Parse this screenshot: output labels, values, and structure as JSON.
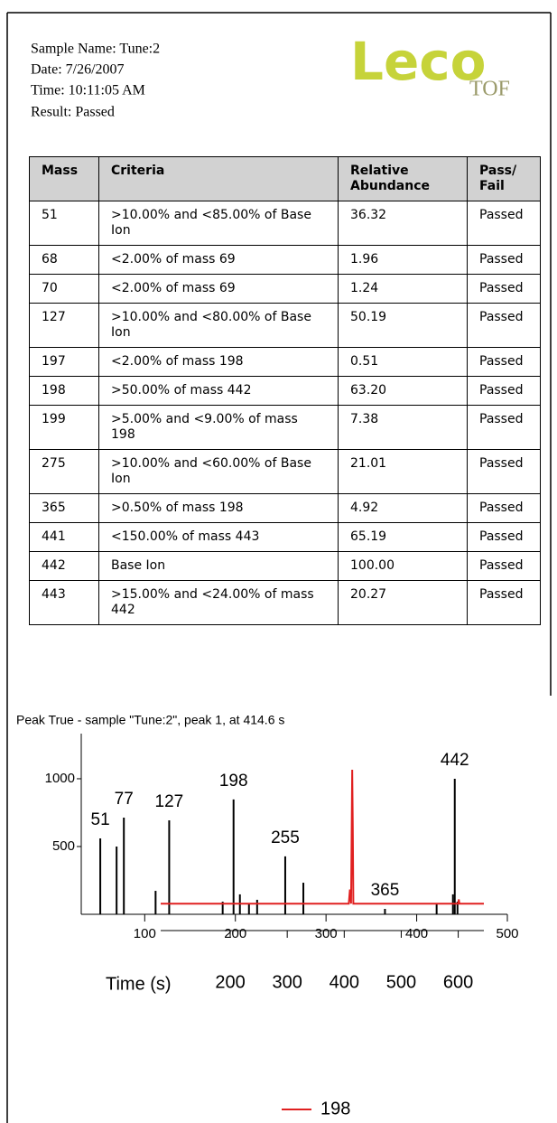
{
  "header": {
    "sample_name": "Sample Name: Tune:2",
    "date": "Date: 7/26/2007",
    "time": "Time: 10:11:05 AM",
    "result": "Result: Passed",
    "logo": "Leco",
    "logo_sub": "TOF"
  },
  "table": {
    "columns": [
      "Mass",
      "Criteria",
      "Relative Abundance",
      "Pass/ Fail"
    ],
    "rows": [
      [
        "51",
        ">10.00% and <85.00% of Base Ion",
        "36.32",
        "Passed"
      ],
      [
        "68",
        "<2.00% of mass 69",
        "1.96",
        "Passed"
      ],
      [
        "70",
        "<2.00% of mass 69",
        "1.24",
        "Passed"
      ],
      [
        "127",
        ">10.00% and <80.00% of Base Ion",
        "50.19",
        "Passed"
      ],
      [
        "197",
        "<2.00% of mass 198",
        "0.51",
        "Passed"
      ],
      [
        "198",
        ">50.00% of mass 442",
        "63.20",
        "Passed"
      ],
      [
        "199",
        ">5.00% and <9.00% of mass 198",
        "7.38",
        "Passed"
      ],
      [
        "275",
        ">10.00% and <60.00% of Base Ion",
        "21.01",
        "Passed"
      ],
      [
        "365",
        ">0.50% of mass 198",
        "4.92",
        "Passed"
      ],
      [
        "441",
        "<150.00% of mass 443",
        "65.19",
        "Passed"
      ],
      [
        "442",
        "Base Ion",
        "100.00",
        "Passed"
      ],
      [
        "443",
        ">15.00% and <24.00% of mass 442",
        "20.27",
        "Passed"
      ]
    ]
  },
  "chart_data": [
    {
      "type": "bar",
      "title": "Peak True - sample \"Tune:2\", peak 1, at 414.6 s",
      "color": "#000000",
      "x": [
        51,
        69,
        77,
        112,
        127,
        186,
        198,
        205,
        215,
        224,
        255,
        275,
        365,
        422,
        440,
        442,
        445
      ],
      "values": [
        560,
        500,
        713,
        173,
        693,
        93,
        847,
        147,
        80,
        107,
        427,
        233,
        40,
        80,
        147,
        1000,
        93
      ],
      "peak_labels": [
        51,
        77,
        127,
        198,
        255,
        365,
        442
      ],
      "xlim": [
        30,
        500
      ],
      "xticks": [
        100,
        200,
        300,
        400,
        500
      ],
      "ylim": [
        0,
        1333
      ],
      "yticks": [
        500,
        1000
      ]
    },
    {
      "type": "line",
      "x_label": "Time (s)",
      "xlim": [
        78,
        645
      ],
      "xticks": [
        200,
        300,
        400,
        500,
        600
      ],
      "ylim": [
        0,
        1.1
      ],
      "series": [
        {
          "name": "198",
          "color": "#e02020",
          "x": [
            78,
            408,
            410,
            412,
            414,
            415,
            416,
            418,
            600,
            601,
            602,
            645
          ],
          "values": [
            0.05,
            0.05,
            0.15,
            0.05,
            1,
            0.6,
            0.05,
            0.05,
            0.05,
            0.08,
            0.05,
            0.05
          ]
        }
      ]
    }
  ]
}
